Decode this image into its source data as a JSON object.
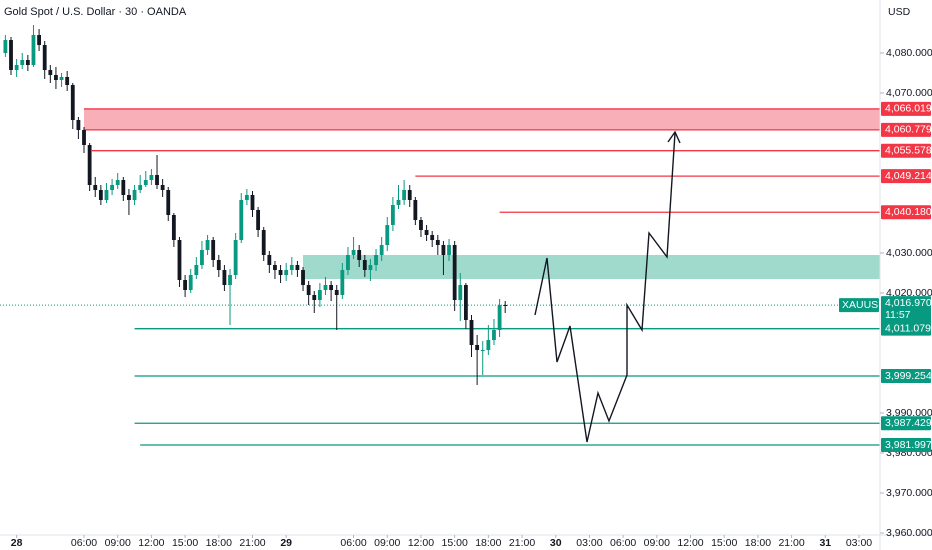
{
  "header": {
    "title": "Gold Spot / U.S. Dollar · 30 · OANDA",
    "currency": "USD"
  },
  "chart_data": {
    "type": "candlestick",
    "up_color": "#089981",
    "down_color": "#131722",
    "x": [
      -1,
      -0.5,
      0,
      0.5,
      1,
      1.5,
      2,
      2.5,
      3,
      3.5,
      4,
      4.5,
      5,
      5.5,
      6,
      6.5,
      7,
      7.5,
      8,
      8.5,
      9,
      9.5,
      10,
      10.5,
      11,
      11.5,
      12,
      12.5,
      13,
      13.5,
      14,
      14.5,
      15,
      15.5,
      16,
      16.5,
      17,
      17.5,
      18,
      18.5,
      19,
      19.5,
      20,
      20.5,
      21,
      21.5,
      22,
      22.5,
      23,
      23.5,
      24,
      24.5,
      25,
      25.5,
      26,
      26.5,
      27,
      27.5,
      28,
      28.5,
      29,
      29.5,
      30,
      30.5,
      31,
      31.5,
      32,
      32.5,
      33,
      33.5,
      34,
      34.5,
      35,
      35.5,
      36,
      36.5,
      37,
      37.5,
      38,
      38.5,
      39,
      39.5,
      40,
      40.5,
      41,
      41.5,
      42,
      42.5,
      43,
      43.5
    ],
    "candles": [
      [
        4080,
        4084.5,
        4079,
        4083.25
      ],
      [
        4083.25,
        4084,
        4074.5,
        4075.75
      ],
      [
        4075.75,
        4078.5,
        4074,
        4077
      ],
      [
        4077,
        4080,
        4076,
        4078.25
      ],
      [
        4078.25,
        4079.5,
        4075.5,
        4077
      ],
      [
        4077,
        4087,
        4076.5,
        4084.5
      ],
      [
        4084.5,
        4086,
        4080.5,
        4082
      ],
      [
        4082,
        4083,
        4073.5,
        4075.75
      ],
      [
        4075.75,
        4077,
        4072.5,
        4074.5
      ],
      [
        4074.5,
        4076.5,
        4071,
        4073.25
      ],
      [
        4073.25,
        4075,
        4071.5,
        4074
      ],
      [
        4074,
        4075.5,
        4070.5,
        4072
      ],
      [
        4072,
        4072.5,
        4061,
        4063.25
      ],
      [
        4063.25,
        4064,
        4058.5,
        4060.75
      ],
      [
        4060.75,
        4061.5,
        4055,
        4057
      ],
      [
        4057,
        4057.5,
        4045.5,
        4047
      ],
      [
        4047,
        4049,
        4044,
        4045.75
      ],
      [
        4045.75,
        4047,
        4042,
        4043.25
      ],
      [
        4043.25,
        4047.5,
        4042.5,
        4045.75
      ],
      [
        4045.75,
        4048.5,
        4044.5,
        4047
      ],
      [
        4047,
        4050,
        4046,
        4048.25
      ],
      [
        4048.25,
        4049,
        4043,
        4044.5
      ],
      [
        4044.5,
        4046,
        4039.5,
        4043.25
      ],
      [
        4043.25,
        4047,
        4042,
        4045.75
      ],
      [
        4045.75,
        4049.5,
        4045,
        4047
      ],
      [
        4047,
        4050.5,
        4046.5,
        4048.25
      ],
      [
        4048.25,
        4051,
        4047,
        4049.5
      ],
      [
        4049.5,
        4054.5,
        4046,
        4047
      ],
      [
        4047,
        4048.5,
        4044,
        4045.75
      ],
      [
        4045.75,
        4046.5,
        4038,
        4039.5
      ],
      [
        4039.5,
        4040,
        4031.5,
        4033.25
      ],
      [
        4033.25,
        4034,
        4021.5,
        4023.25
      ],
      [
        4023.25,
        4024.5,
        4019,
        4020.75
      ],
      [
        4020.75,
        4026,
        4020,
        4024.5
      ],
      [
        4024.5,
        4029,
        4023.5,
        4027
      ],
      [
        4027,
        4033,
        4026,
        4030.75
      ],
      [
        4030.75,
        4034.5,
        4029.5,
        4033.25
      ],
      [
        4033.25,
        4034,
        4026.5,
        4028.25
      ],
      [
        4028.25,
        4029.5,
        4024,
        4025.75
      ],
      [
        4025.75,
        4027,
        4020.5,
        4022
      ],
      [
        4022,
        4026,
        4012,
        4024.5
      ],
      [
        4024.5,
        4035,
        4023.5,
        4033.25
      ],
      [
        4033.25,
        4045,
        4032.5,
        4043.25
      ],
      [
        4043.25,
        4046,
        4042,
        4044.5
      ],
      [
        4044.5,
        4045.5,
        4039,
        4040.75
      ],
      [
        4040.75,
        4041.5,
        4034,
        4035.75
      ],
      [
        4035.75,
        4036.5,
        4028,
        4029.5
      ],
      [
        4029.5,
        4030.5,
        4025,
        4027
      ],
      [
        4027,
        4028,
        4023.5,
        4025.75
      ],
      [
        4025.75,
        4027,
        4022.5,
        4024.5
      ],
      [
        4024.5,
        4027.5,
        4023,
        4025.75
      ],
      [
        4025.75,
        4029,
        4024.5,
        4027
      ],
      [
        4027,
        4028,
        4024,
        4025.75
      ],
      [
        4025.75,
        4026.5,
        4020.5,
        4022
      ],
      [
        4022,
        4023,
        4017,
        4019.5
      ],
      [
        4019.5,
        4020.5,
        4015,
        4018.25
      ],
      [
        4018.25,
        4022.5,
        4016.5,
        4020.75
      ],
      [
        4020.75,
        4024,
        4019.5,
        4022
      ],
      [
        4022,
        4023,
        4018,
        4020.75
      ],
      [
        4020.75,
        4022,
        4010.75,
        4019.5
      ],
      [
        4019.5,
        4027.5,
        4018.5,
        4025.75
      ],
      [
        4025.75,
        4031.5,
        4024.5,
        4029.5
      ],
      [
        4029.5,
        4034,
        4028.5,
        4030.75
      ],
      [
        4030.75,
        4032,
        4026.5,
        4028.25
      ],
      [
        4028.25,
        4029.5,
        4024,
        4025.75
      ],
      [
        4025.75,
        4028.5,
        4023,
        4027
      ],
      [
        4027,
        4031,
        4025.5,
        4029.5
      ],
      [
        4029.5,
        4034,
        4028,
        4032
      ],
      [
        4032,
        4039,
        4030.5,
        4037
      ],
      [
        4037,
        4044,
        4035.5,
        4042
      ],
      [
        4042,
        4047,
        4041,
        4043.25
      ],
      [
        4043.25,
        4048.25,
        4042,
        4045.75
      ],
      [
        4045.75,
        4047,
        4041.5,
        4043.25
      ],
      [
        4043.25,
        4044,
        4037,
        4038.25
      ],
      [
        4038.25,
        4039,
        4034,
        4035.75
      ],
      [
        4035.75,
        4037,
        4033,
        4034.5
      ],
      [
        4034.5,
        4035.5,
        4031.5,
        4033.25
      ],
      [
        4033.25,
        4034.5,
        4029.5,
        4032
      ],
      [
        4032,
        4033,
        4024.5,
        4029.5
      ],
      [
        4029.5,
        4033.5,
        4028,
        4032
      ],
      [
        4032,
        4033,
        4015.5,
        4018.25
      ],
      [
        4018.25,
        4025,
        4013,
        4022
      ],
      [
        4022,
        4022.5,
        4011,
        4013.25
      ],
      [
        4013.25,
        4014.5,
        4004,
        4007
      ],
      [
        4007,
        4009.5,
        3997,
        4005.75
      ],
      [
        4005.75,
        4008,
        3999.5,
        4005.75
      ],
      [
        4005.75,
        4012,
        4004.5,
        4008.25
      ],
      [
        4008.25,
        4013.5,
        4007,
        4010.75
      ],
      [
        4010.75,
        4018.5,
        4009,
        4017
      ],
      [
        4017,
        4018,
        4015,
        4016.97
      ]
    ],
    "xlim": [
      -1.48,
      76.87
    ],
    "ylim": [
      3959.5,
      4093.25
    ],
    "xticks": [
      {
        "value": 0,
        "label": "28"
      },
      {
        "value": 6,
        "label": "06:00"
      },
      {
        "value": 9,
        "label": "09:00"
      },
      {
        "value": 12,
        "label": "12:00"
      },
      {
        "value": 15,
        "label": "15:00"
      },
      {
        "value": 18,
        "label": "18:00"
      },
      {
        "value": 21,
        "label": "21:00"
      },
      {
        "value": 24,
        "label": "29"
      },
      {
        "value": 30,
        "label": "06:00"
      },
      {
        "value": 33,
        "label": "09:00"
      },
      {
        "value": 36,
        "label": "12:00"
      },
      {
        "value": 39,
        "label": "15:00"
      },
      {
        "value": 42,
        "label": "18:00"
      },
      {
        "value": 45,
        "label": "21:00"
      },
      {
        "value": 48,
        "label": "30"
      },
      {
        "value": 51,
        "label": "03:00"
      },
      {
        "value": 54,
        "label": "06:00"
      },
      {
        "value": 57,
        "label": "09:00"
      },
      {
        "value": 60,
        "label": "12:00"
      },
      {
        "value": 63,
        "label": "15:00"
      },
      {
        "value": 66,
        "label": "18:00"
      },
      {
        "value": 69,
        "label": "21:00"
      },
      {
        "value": 72,
        "label": "31"
      },
      {
        "value": 75,
        "label": "03:00"
      }
    ],
    "yticks": [
      {
        "value": 4080,
        "label": "4,080.000"
      },
      {
        "value": 4070,
        "label": "4,070.000"
      },
      {
        "value": 4030,
        "label": "4,030.000"
      },
      {
        "value": 4020,
        "label": "4,020.000"
      },
      {
        "value": 3990,
        "label": "3,990.000"
      },
      {
        "value": 3980,
        "label": "3,980.000"
      },
      {
        "value": 3970,
        "label": "3,970.000"
      },
      {
        "value": 3960,
        "label": "3,960.000"
      }
    ],
    "levels": [
      {
        "value": 4066.019,
        "label": "4,066.019",
        "start": 6,
        "color": "#f23645"
      },
      {
        "value": 4060.779,
        "label": "4,060.779",
        "start": 6,
        "color": "#f23645"
      },
      {
        "value": 4055.578,
        "label": "4,055.578",
        "start": 6.7,
        "color": "#f23645"
      },
      {
        "value": 4049.214,
        "label": "4,049.214",
        "start": 35.5,
        "color": "#f23645"
      },
      {
        "value": 4040.18,
        "label": "4,040.180",
        "start": 43,
        "color": "#f23645"
      },
      {
        "value": 4011.079,
        "label": "4,011.079",
        "start": 10.5,
        "color": "#089981"
      },
      {
        "value": 3999.254,
        "label": "3,999.254",
        "start": 10.5,
        "color": "#089981"
      },
      {
        "value": 3987.429,
        "label": "3,987.429",
        "start": 10.5,
        "color": "#089981"
      },
      {
        "value": 3981.997,
        "label": "3,981.997",
        "start": 11,
        "color": "#089981"
      }
    ],
    "zones": [
      {
        "top": 4066.019,
        "bottom": 4060.779,
        "start": 6,
        "color": "#f7a1aa"
      },
      {
        "top": 4029.5,
        "bottom": 4023.5,
        "start": 25.5,
        "color": "#8fd3c3"
      }
    ],
    "current_price": {
      "value": 4016.97,
      "label": "4,016.970",
      "symbol": "XAUUSD",
      "countdown": "11:57",
      "color": "#089981"
    }
  }
}
